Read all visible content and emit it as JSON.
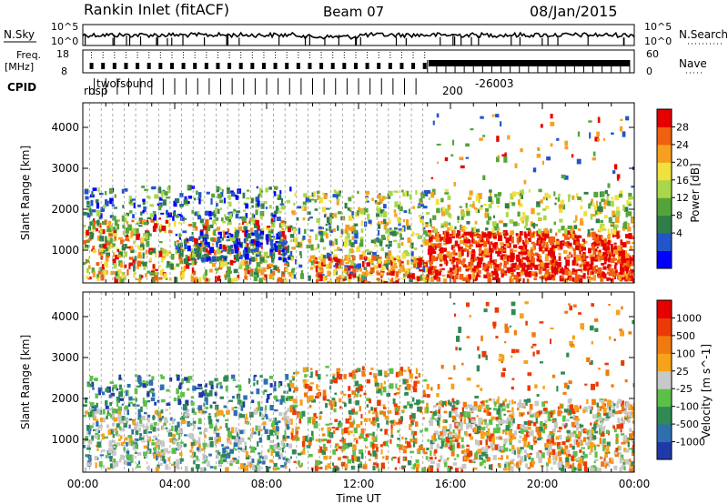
{
  "header": {
    "station": "Rankin Inlet (fitACF)",
    "beam": "Beam 07",
    "date": "08/Jan/2015"
  },
  "top_panels": {
    "nsky_label": "N.Sky",
    "nsearch_label": "N.Search",
    "nsky_ticks": [
      "10^5",
      "10^0"
    ],
    "nsearch_ticks": [
      "10^5",
      "10^0"
    ],
    "freq_label": "Freq.",
    "freq_unit": "[MHz]",
    "freq_ticks": [
      "18",
      "8"
    ],
    "nave_label": "Nave",
    "nave_ticks": [
      "60",
      "0"
    ],
    "cpid_label": "CPID",
    "cpid_text_a": "twofsound",
    "cpid_text_b": "rbsp",
    "cpid_text_c": "-26003",
    "cpid_text_d": "200"
  },
  "chart_data": [
    {
      "type": "heatmap",
      "name": "Power panel",
      "ylabel": "Slant Range [km]",
      "xlabel": "",
      "ylim": [
        200,
        4600
      ],
      "xlim": [
        0,
        24
      ],
      "yticks": [
        "1000",
        "2000",
        "3000",
        "4000"
      ],
      "colorbar": {
        "label": "Power [dB]",
        "ticks": [
          "28",
          "24",
          "20",
          "16",
          "12",
          "8",
          "4"
        ],
        "colors": [
          "#0000ff",
          "#2255c8",
          "#2f7e4a",
          "#55a43a",
          "#a8d84a",
          "#f0e040",
          "#f7a020",
          "#f06010",
          "#e60000"
        ]
      }
    },
    {
      "type": "heatmap",
      "name": "Velocity panel",
      "ylabel": "Slant Range [km]",
      "xlabel": "Time UT",
      "ylim": [
        200,
        4600
      ],
      "xlim": [
        0,
        24
      ],
      "yticks": [
        "1000",
        "2000",
        "3000",
        "4000"
      ],
      "xticks": [
        "00:00",
        "04:00",
        "08:00",
        "12:00",
        "16:00",
        "20:00",
        "00:00"
      ],
      "colorbar": {
        "label": "Velocity [m s^-1]",
        "ticks": [
          "1000",
          "500",
          "100",
          "25",
          "-25",
          "-100",
          "-500",
          "-1000"
        ],
        "colors": [
          "#1f3aa8",
          "#2e6fb0",
          "#2f8a55",
          "#5cc048",
          "#c8c8c8",
          "#f6a21a",
          "#f07a10",
          "#ea3a06",
          "#e60000"
        ]
      }
    }
  ]
}
